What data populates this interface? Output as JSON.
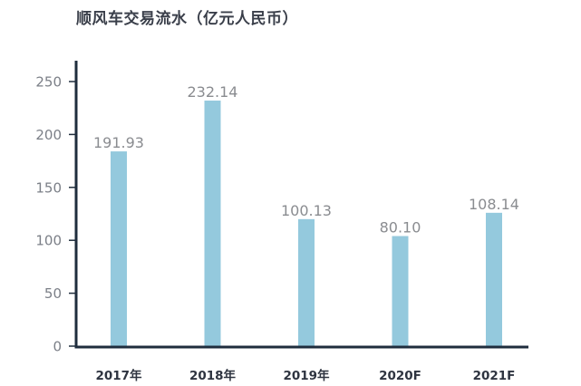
{
  "chart_data": {
    "type": "bar",
    "title": "顺风车交易流水（亿元人民币）",
    "categories": [
      "2017年",
      "2018年",
      "2019年",
      "2020F",
      "2021F"
    ],
    "values": [
      191.93,
      232.14,
      100.13,
      80.1,
      108.14
    ],
    "value_labels": [
      "191.93",
      "232.14",
      "100.13",
      "80.10",
      "108.14"
    ],
    "bar_heights": [
      184,
      232,
      120,
      104,
      126
    ],
    "ylim": [
      0,
      270
    ],
    "yticks": [
      0,
      50,
      100,
      150,
      200,
      250
    ],
    "xlabel": "",
    "ylabel": "",
    "grid": false,
    "colors": {
      "bar": "#94c9dd",
      "axis": "#1f2d3d",
      "tick_text": "#7b7f87",
      "data_label": "#8a8c90",
      "category_text": "#2e3440"
    }
  }
}
